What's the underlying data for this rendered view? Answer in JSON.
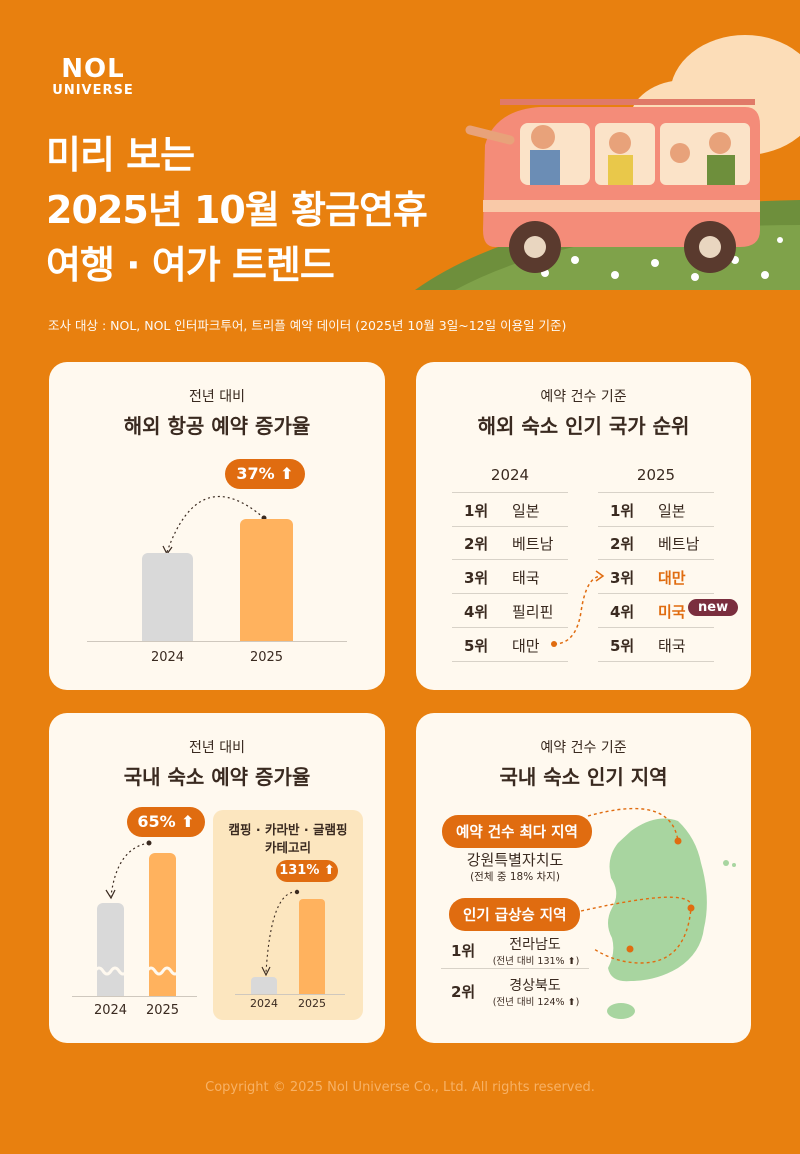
{
  "logo": {
    "line1": "NOL",
    "line2": "UNIVERSE"
  },
  "title": {
    "line1": "미리 보는",
    "line2": "2025년 10월 황금연휴",
    "line3": "여행 · 여가 트렌드"
  },
  "survey": "조사 대상 : NOL, NOL 인터파크투어, 트리플 예약 데이터 (2025년 10월 3일~12일 이용일 기준)",
  "card1": {
    "sub": "전년 대비",
    "head": "해외 항공 예약 증가율",
    "badge": "37%",
    "chart_data": {
      "type": "bar",
      "categories": [
        "2024",
        "2025"
      ],
      "growth_percent": 37
    }
  },
  "card2": {
    "sub": "예약 건수 기준",
    "head": "해외 숙소 인기 국가 순위",
    "col2024": "2024",
    "col2025": "2025",
    "rows2024": [
      {
        "rank": "1위",
        "name": "일본"
      },
      {
        "rank": "2위",
        "name": "베트남"
      },
      {
        "rank": "3위",
        "name": "태국"
      },
      {
        "rank": "4위",
        "name": "필리핀"
      },
      {
        "rank": "5위",
        "name": "대만"
      }
    ],
    "rows2025": [
      {
        "rank": "1위",
        "name": "일본"
      },
      {
        "rank": "2위",
        "name": "베트남"
      },
      {
        "rank": "3위",
        "name": "대만"
      },
      {
        "rank": "4위",
        "name": "미국"
      },
      {
        "rank": "5위",
        "name": "태국"
      }
    ],
    "new_label": "new"
  },
  "card3": {
    "sub": "전년 대비",
    "head": "국내 숙소 예약 증가율",
    "badge": "65%",
    "years": [
      "2024",
      "2025"
    ],
    "inner_title1": "캠핑 · 카라반 · 글램핑",
    "inner_title2": "카테고리",
    "inner_badge": "131%",
    "chart_data": [
      {
        "type": "bar",
        "categories": [
          "2024",
          "2025"
        ],
        "growth_percent": 65
      },
      {
        "type": "bar",
        "categories": [
          "2024",
          "2025"
        ],
        "growth_percent": 131
      }
    ]
  },
  "card4": {
    "sub": "예약 건수 기준",
    "head": "국내 숙소 인기 지역",
    "pill1": "예약 건수 최다 지역",
    "top_region": "강원특별자치도",
    "top_note": "(전체 중 18% 차지)",
    "pill2": "인기 급상승 지역",
    "rising": [
      {
        "rank": "1위",
        "name": "전라남도",
        "note": "(전년 대비 131%"
      },
      {
        "rank": "2위",
        "name": "경상북도",
        "note": "(전년 대비 124%"
      }
    ]
  },
  "copyright": "Copyright © 2025 Nol Universe Co., Ltd. All rights reserved.",
  "colors": {
    "background": "#E8800F",
    "accent": "#E06C10",
    "card": "#FFF9EF",
    "bar_orange": "#FFB25E",
    "bar_gray": "#D9D9D9",
    "map_green": "#A8D5A0",
    "new_badge": "#7A2E3E"
  },
  "icons": [
    "up-arrow-icon",
    "camper-van-illustration",
    "korea-map-illustration"
  ]
}
